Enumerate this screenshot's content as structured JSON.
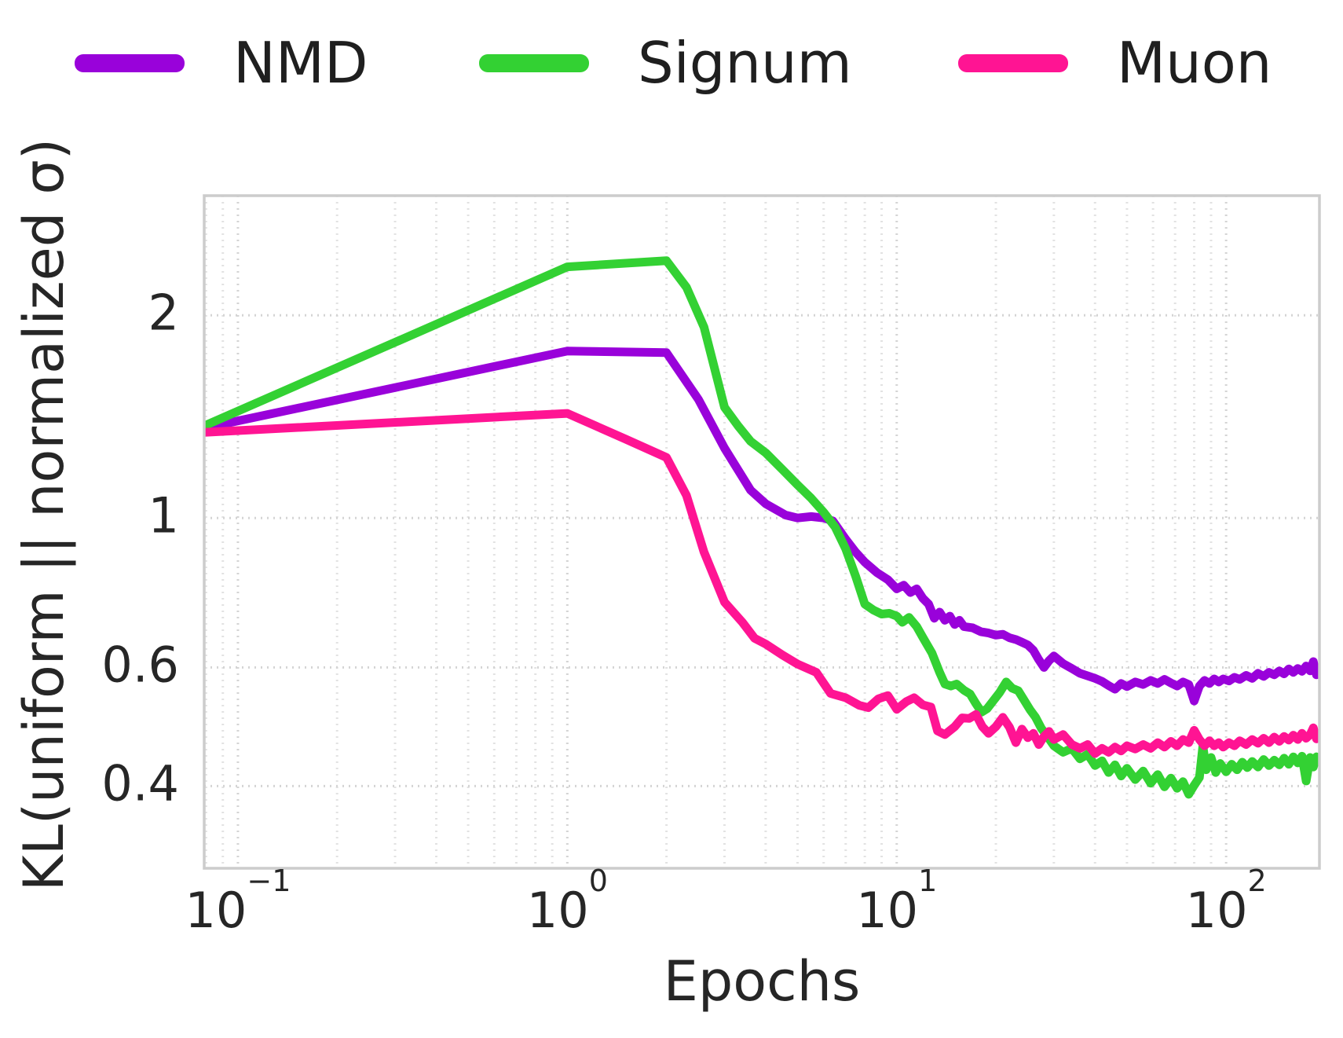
{
  "figure": {
    "background": "#ffffff",
    "plot_border_color": "#cccccc",
    "text_color": "#262626",
    "grid_major_color": "#d4d4d4",
    "grid_minor_color": "#e2e2e2"
  },
  "chart_data": {
    "type": "line",
    "title": "",
    "xlabel": "Epochs",
    "ylabel": "KL(uniform || normalized σ)",
    "x_scale": "log",
    "y_scale": "log",
    "xlim": [
      0.079,
      192
    ],
    "ylim": [
      0.302,
      3.01
    ],
    "grid": {
      "horizontal_values": [
        2,
        1,
        0.6,
        0.4
      ],
      "vertical_minor": true
    },
    "legend": {
      "position": "top",
      "entries": [
        {
          "label": "NMD",
          "color": "#9902DA"
        },
        {
          "label": "Signum",
          "color": "#33D133"
        },
        {
          "label": "Muon",
          "color": "#FF1493"
        }
      ]
    },
    "x_major_ticks": [
      {
        "base": "10",
        "exp": "−1",
        "value": 0.1
      },
      {
        "base": "10",
        "exp": "0",
        "value": 1
      },
      {
        "base": "10",
        "exp": "1",
        "value": 10
      },
      {
        "base": "10",
        "exp": "2",
        "value": 100
      }
    ],
    "y_major_ticks": [
      {
        "label": "2",
        "value": 2
      },
      {
        "label": "1",
        "value": 1
      },
      {
        "label": "0.6",
        "value": 0.6
      },
      {
        "label": "0.4",
        "value": 0.4
      }
    ],
    "series": [
      {
        "name": "NMD",
        "color": "#9902DA",
        "points": [
          [
            0.079,
            1.36
          ],
          [
            1,
            1.77
          ],
          [
            2,
            1.76
          ],
          [
            2.5,
            1.5
          ],
          [
            3,
            1.27
          ],
          [
            3.6,
            1.1
          ],
          [
            4,
            1.05
          ],
          [
            4.6,
            1.01
          ],
          [
            5,
            1.0
          ],
          [
            5.5,
            1.005
          ],
          [
            6,
            1.0
          ],
          [
            6.4,
            0.99
          ],
          [
            7,
            0.93
          ],
          [
            7.5,
            0.89
          ],
          [
            8,
            0.86
          ],
          [
            8.7,
            0.83
          ],
          [
            9.4,
            0.81
          ],
          [
            10,
            0.785
          ],
          [
            10.5,
            0.795
          ],
          [
            11,
            0.775
          ],
          [
            11.5,
            0.785
          ],
          [
            12,
            0.76
          ],
          [
            12.5,
            0.745
          ],
          [
            13,
            0.71
          ],
          [
            13.5,
            0.725
          ],
          [
            14,
            0.705
          ],
          [
            14.5,
            0.715
          ],
          [
            15,
            0.695
          ],
          [
            15.5,
            0.705
          ],
          [
            16,
            0.69
          ],
          [
            17,
            0.687
          ],
          [
            18,
            0.678
          ],
          [
            19,
            0.675
          ],
          [
            20,
            0.67
          ],
          [
            21,
            0.672
          ],
          [
            22,
            0.664
          ],
          [
            23,
            0.66
          ],
          [
            24,
            0.654
          ],
          [
            25,
            0.648
          ],
          [
            26,
            0.636
          ],
          [
            27,
            0.616
          ],
          [
            28,
            0.6
          ],
          [
            29,
            0.614
          ],
          [
            30,
            0.624
          ],
          [
            32,
            0.608
          ],
          [
            34,
            0.598
          ],
          [
            36,
            0.588
          ],
          [
            38,
            0.583
          ],
          [
            40,
            0.578
          ],
          [
            42,
            0.572
          ],
          [
            44,
            0.564
          ],
          [
            46,
            0.557
          ],
          [
            48,
            0.568
          ],
          [
            50,
            0.562
          ],
          [
            53,
            0.571
          ],
          [
            56,
            0.566
          ],
          [
            59,
            0.574
          ],
          [
            62,
            0.568
          ],
          [
            65,
            0.576
          ],
          [
            68,
            0.569
          ],
          [
            71,
            0.563
          ],
          [
            74,
            0.571
          ],
          [
            77,
            0.566
          ],
          [
            80,
            0.535
          ],
          [
            83,
            0.563
          ],
          [
            86,
            0.574
          ],
          [
            89,
            0.568
          ],
          [
            92,
            0.577
          ],
          [
            95,
            0.571
          ],
          [
            98,
            0.577
          ],
          [
            102,
            0.573
          ],
          [
            106,
            0.58
          ],
          [
            110,
            0.576
          ],
          [
            115,
            0.584
          ],
          [
            120,
            0.578
          ],
          [
            125,
            0.588
          ],
          [
            130,
            0.582
          ],
          [
            135,
            0.59
          ],
          [
            140,
            0.585
          ],
          [
            145,
            0.593
          ],
          [
            150,
            0.587
          ],
          [
            155,
            0.597
          ],
          [
            160,
            0.59
          ],
          [
            165,
            0.598
          ],
          [
            170,
            0.592
          ],
          [
            175,
            0.603
          ],
          [
            180,
            0.593
          ],
          [
            184,
            0.612
          ],
          [
            188,
            0.585
          ],
          [
            192,
            0.596
          ]
        ]
      },
      {
        "name": "Signum",
        "color": "#33D133",
        "points": [
          [
            0.079,
            1.37
          ],
          [
            1,
            2.36
          ],
          [
            2,
            2.41
          ],
          [
            2.3,
            2.2
          ],
          [
            2.6,
            1.92
          ],
          [
            3,
            1.46
          ],
          [
            3.3,
            1.37
          ],
          [
            3.6,
            1.3
          ],
          [
            4,
            1.25
          ],
          [
            4.5,
            1.18
          ],
          [
            5,
            1.12
          ],
          [
            5.5,
            1.07
          ],
          [
            6,
            1.02
          ],
          [
            6.5,
            0.97
          ],
          [
            7,
            0.9
          ],
          [
            7.5,
            0.82
          ],
          [
            8,
            0.745
          ],
          [
            8.5,
            0.73
          ],
          [
            9,
            0.72
          ],
          [
            9.5,
            0.722
          ],
          [
            10,
            0.715
          ],
          [
            10.4,
            0.7
          ],
          [
            10.9,
            0.712
          ],
          [
            11.5,
            0.69
          ],
          [
            12,
            0.665
          ],
          [
            12.8,
            0.63
          ],
          [
            13.5,
            0.59
          ],
          [
            14,
            0.567
          ],
          [
            14.6,
            0.563
          ],
          [
            15.2,
            0.567
          ],
          [
            16,
            0.555
          ],
          [
            16.7,
            0.548
          ],
          [
            17.4,
            0.53
          ],
          [
            18.1,
            0.515
          ],
          [
            18.8,
            0.521
          ],
          [
            19.5,
            0.533
          ],
          [
            20.5,
            0.55
          ],
          [
            21.5,
            0.571
          ],
          [
            22.4,
            0.559
          ],
          [
            23.4,
            0.554
          ],
          [
            24.4,
            0.536
          ],
          [
            25.4,
            0.519
          ],
          [
            26.4,
            0.506
          ],
          [
            27.5,
            0.487
          ],
          [
            28.5,
            0.476
          ],
          [
            30,
            0.459
          ],
          [
            32,
            0.449
          ],
          [
            34,
            0.455
          ],
          [
            36,
            0.439
          ],
          [
            38,
            0.446
          ],
          [
            40,
            0.429
          ],
          [
            42,
            0.436
          ],
          [
            44,
            0.419
          ],
          [
            46,
            0.43
          ],
          [
            48,
            0.414
          ],
          [
            50,
            0.425
          ],
          [
            53,
            0.409
          ],
          [
            56,
            0.421
          ],
          [
            59,
            0.404
          ],
          [
            62,
            0.416
          ],
          [
            65,
            0.399
          ],
          [
            68,
            0.411
          ],
          [
            71,
            0.397
          ],
          [
            74,
            0.406
          ],
          [
            77,
            0.389
          ],
          [
            80,
            0.401
          ],
          [
            83,
            0.412
          ],
          [
            85,
            0.459
          ],
          [
            87,
            0.423
          ],
          [
            90,
            0.441
          ],
          [
            93,
            0.419
          ],
          [
            96,
            0.432
          ],
          [
            100,
            0.42
          ],
          [
            104,
            0.431
          ],
          [
            108,
            0.423
          ],
          [
            112,
            0.434
          ],
          [
            116,
            0.426
          ],
          [
            120,
            0.435
          ],
          [
            125,
            0.427
          ],
          [
            130,
            0.438
          ],
          [
            135,
            0.429
          ],
          [
            140,
            0.437
          ],
          [
            145,
            0.43
          ],
          [
            150,
            0.44
          ],
          [
            155,
            0.431
          ],
          [
            160,
            0.442
          ],
          [
            165,
            0.433
          ],
          [
            170,
            0.443
          ],
          [
            175,
            0.407
          ],
          [
            180,
            0.441
          ],
          [
            184,
            0.427
          ],
          [
            188,
            0.442
          ],
          [
            192,
            0.434
          ]
        ]
      },
      {
        "name": "Muon",
        "color": "#FF1493",
        "points": [
          [
            0.079,
            1.34
          ],
          [
            1,
            1.43
          ],
          [
            1.5,
            1.31
          ],
          [
            2,
            1.23
          ],
          [
            2.3,
            1.08
          ],
          [
            2.6,
            0.89
          ],
          [
            3,
            0.75
          ],
          [
            3.4,
            0.7
          ],
          [
            3.7,
            0.663
          ],
          [
            4,
            0.65
          ],
          [
            4.5,
            0.626
          ],
          [
            5,
            0.607
          ],
          [
            5.7,
            0.59
          ],
          [
            6.3,
            0.549
          ],
          [
            7,
            0.541
          ],
          [
            7.7,
            0.527
          ],
          [
            8.2,
            0.523
          ],
          [
            8.8,
            0.539
          ],
          [
            9.4,
            0.545
          ],
          [
            10,
            0.52
          ],
          [
            10.7,
            0.534
          ],
          [
            11.3,
            0.541
          ],
          [
            12,
            0.528
          ],
          [
            12.7,
            0.524
          ],
          [
            13.3,
            0.483
          ],
          [
            14,
            0.477
          ],
          [
            15,
            0.49
          ],
          [
            15.8,
            0.505
          ],
          [
            16.6,
            0.504
          ],
          [
            17.4,
            0.511
          ],
          [
            18.2,
            0.49
          ],
          [
            19,
            0.479
          ],
          [
            20,
            0.49
          ],
          [
            21,
            0.506
          ],
          [
            22,
            0.489
          ],
          [
            23,
            0.464
          ],
          [
            24,
            0.486
          ],
          [
            25,
            0.472
          ],
          [
            26,
            0.479
          ],
          [
            27,
            0.461
          ],
          [
            28,
            0.474
          ],
          [
            29,
            0.482
          ],
          [
            30,
            0.469
          ],
          [
            32,
            0.477
          ],
          [
            34,
            0.461
          ],
          [
            36,
            0.455
          ],
          [
            38,
            0.461
          ],
          [
            40,
            0.447
          ],
          [
            42,
            0.455
          ],
          [
            44,
            0.449
          ],
          [
            46,
            0.457
          ],
          [
            48,
            0.451
          ],
          [
            50,
            0.459
          ],
          [
            53,
            0.454
          ],
          [
            56,
            0.461
          ],
          [
            59,
            0.455
          ],
          [
            62,
            0.464
          ],
          [
            65,
            0.457
          ],
          [
            68,
            0.466
          ],
          [
            71,
            0.459
          ],
          [
            74,
            0.469
          ],
          [
            77,
            0.464
          ],
          [
            80,
            0.484
          ],
          [
            83,
            0.469
          ],
          [
            86,
            0.459
          ],
          [
            89,
            0.467
          ],
          [
            92,
            0.459
          ],
          [
            95,
            0.464
          ],
          [
            98,
            0.457
          ],
          [
            102,
            0.464
          ],
          [
            106,
            0.459
          ],
          [
            110,
            0.467
          ],
          [
            115,
            0.461
          ],
          [
            120,
            0.469
          ],
          [
            125,
            0.463
          ],
          [
            130,
            0.471
          ],
          [
            135,
            0.464
          ],
          [
            140,
            0.473
          ],
          [
            145,
            0.466
          ],
          [
            150,
            0.474
          ],
          [
            155,
            0.468
          ],
          [
            160,
            0.476
          ],
          [
            165,
            0.469
          ],
          [
            170,
            0.479
          ],
          [
            175,
            0.471
          ],
          [
            180,
            0.477
          ],
          [
            184,
            0.488
          ],
          [
            188,
            0.47
          ],
          [
            192,
            0.479
          ]
        ]
      }
    ]
  }
}
